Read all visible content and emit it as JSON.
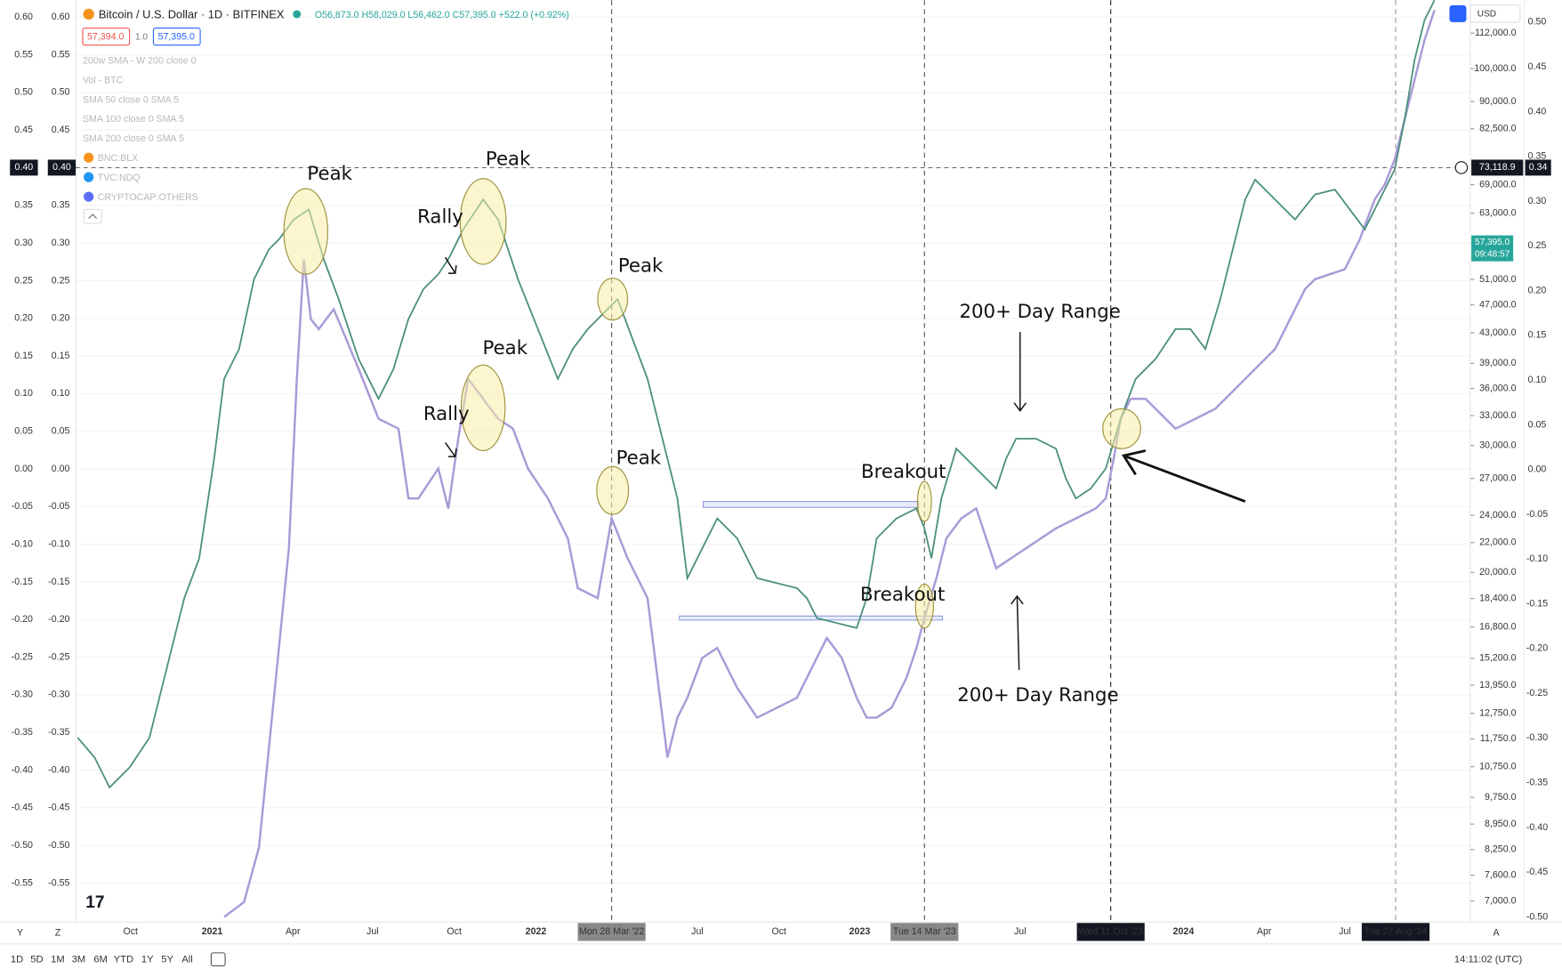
{
  "header": {
    "symbol": "Bitcoin / U.S. Dollar · 1D · BITFINEX",
    "ohlc": "O56,873.0 H58,029.0 L56,462.0 C57,395.0 +522.0 (+0.92%)",
    "bid": "57,394.0",
    "spread": "1.0",
    "ask": "57,395.0",
    "currency": "USD"
  },
  "indicators": [
    "200w SMA - W 200 close 0",
    "Vol - BTC",
    "SMA 50 close 0 SMA 5",
    "SMA 100 close 0 SMA 5",
    "SMA 200 close 0 SMA 5",
    "BNC:BLX",
    "TVC:NDQ",
    "CRYPTOCAP:OTHERS"
  ],
  "left_axis": [
    {
      "value": 0.6,
      "label": "0.60"
    },
    {
      "value": 0.55,
      "label": "0.55"
    },
    {
      "value": 0.5,
      "label": "0.50"
    },
    {
      "value": 0.45,
      "label": "0.45"
    },
    {
      "value": 0.4,
      "label": "0.40"
    },
    {
      "value": 0.35,
      "label": "0.35"
    },
    {
      "value": 0.3,
      "label": "0.30"
    },
    {
      "value": 0.25,
      "label": "0.25"
    },
    {
      "value": 0.2,
      "label": "0.20"
    },
    {
      "value": 0.15,
      "label": "0.15"
    },
    {
      "value": 0.1,
      "label": "0.10"
    },
    {
      "value": 0.05,
      "label": "0.05"
    },
    {
      "value": 0,
      "label": "0.00"
    },
    {
      "value": -0.05,
      "label": "-0.05"
    },
    {
      "value": -0.1,
      "label": "-0.10"
    },
    {
      "value": -0.15,
      "label": "-0.15"
    },
    {
      "value": -0.2,
      "label": "-0.20"
    },
    {
      "value": -0.25,
      "label": "-0.25"
    },
    {
      "value": -0.3,
      "label": "-0.30"
    },
    {
      "value": -0.35,
      "label": "-0.35"
    },
    {
      "value": -0.4,
      "label": "-0.40"
    },
    {
      "value": -0.45,
      "label": "-0.45"
    },
    {
      "value": -0.5,
      "label": "-0.50"
    },
    {
      "value": -0.55,
      "label": "-0.55"
    }
  ],
  "price_axis": [
    {
      "value": 112000,
      "label": "112,000.0"
    },
    {
      "value": 100000,
      "label": "100,000.0"
    },
    {
      "value": 90000,
      "label": "90,000.0"
    },
    {
      "value": 82500,
      "label": "82,500.0"
    },
    {
      "value": 69000,
      "label": "69,000.0"
    },
    {
      "value": 63000,
      "label": "63,000.0"
    },
    {
      "value": 51000,
      "label": "51,000.0"
    },
    {
      "value": 47000,
      "label": "47,000.0"
    },
    {
      "value": 43000,
      "label": "43,000.0"
    },
    {
      "value": 39000,
      "label": "39,000.0"
    },
    {
      "value": 36000,
      "label": "36,000.0"
    },
    {
      "value": 33000,
      "label": "33,000.0"
    },
    {
      "value": 30000,
      "label": "30,000.0"
    },
    {
      "value": 27000,
      "label": "27,000.0"
    },
    {
      "value": 24000,
      "label": "24,000.0"
    },
    {
      "value": 22000,
      "label": "22,000.0"
    },
    {
      "value": 20000,
      "label": "20,000.0"
    },
    {
      "value": 18400,
      "label": "18,400.0"
    },
    {
      "value": 16800,
      "label": "16,800.0"
    },
    {
      "value": 15200,
      "label": "15,200.0"
    },
    {
      "value": 13950,
      "label": "13,950.0"
    },
    {
      "value": 12750,
      "label": "12,750.0"
    },
    {
      "value": 11750,
      "label": "11,750.0"
    },
    {
      "value": 10750,
      "label": "10,750.0"
    },
    {
      "value": 9750,
      "label": "9,750.0"
    },
    {
      "value": 8950,
      "label": "8,950.0"
    },
    {
      "value": 8250,
      "label": "8,250.0"
    },
    {
      "value": 7600,
      "label": "7,600.0"
    },
    {
      "value": 7000,
      "label": "7,000.0"
    }
  ],
  "right_axis": [
    {
      "value": 0.5,
      "label": "0.50"
    },
    {
      "value": 0.45,
      "label": "0.45"
    },
    {
      "value": 0.4,
      "label": "0.40"
    },
    {
      "value": 0.35,
      "label": "0.35"
    },
    {
      "value": 0.3,
      "label": "0.30"
    },
    {
      "value": 0.25,
      "label": "0.25"
    },
    {
      "value": 0.2,
      "label": "0.20"
    },
    {
      "value": 0.15,
      "label": "0.15"
    },
    {
      "value": 0.1,
      "label": "0.10"
    },
    {
      "value": 0.05,
      "label": "0.05"
    },
    {
      "value": 0,
      "label": "0.00"
    },
    {
      "value": -0.05,
      "label": "-0.05"
    },
    {
      "value": -0.1,
      "label": "-0.10"
    },
    {
      "value": -0.15,
      "label": "-0.15"
    },
    {
      "value": -0.2,
      "label": "-0.20"
    },
    {
      "value": -0.25,
      "label": "-0.25"
    },
    {
      "value": -0.3,
      "label": "-0.30"
    },
    {
      "value": -0.35,
      "label": "-0.35"
    },
    {
      "value": -0.4,
      "label": "-0.40"
    },
    {
      "value": -0.45,
      "label": "-0.45"
    },
    {
      "value": -0.5,
      "label": "-0.50"
    }
  ],
  "crosshair": {
    "left_value": "0.40",
    "price": "73,118.9",
    "right_value": "0.34"
  },
  "last_price": {
    "price": "57,395.0",
    "countdown": "09:48:57"
  },
  "time_axis": [
    "Oct",
    "2021",
    "Apr",
    "Jul",
    "Oct",
    "2022",
    "Mon 28 Mar '22",
    "Jul",
    "Oct",
    "2023",
    "Tue 14 Mar '23",
    "Jul",
    "Wed 11 Oct '23",
    "2024",
    "Apr",
    "Jul",
    "Tue 27 Aug '24"
  ],
  "annotations": [
    "Peak",
    "Peak",
    "Rally",
    "Peak",
    "Peak",
    "Rally",
    "Peak",
    "Breakout",
    "Breakout",
    "200+ Day Range",
    "200+ Day Range"
  ],
  "axis_buttons": [
    "Y",
    "Z",
    "A"
  ],
  "ranges": [
    "1D",
    "5D",
    "1M",
    "3M",
    "6M",
    "YTD",
    "1Y",
    "5Y",
    "All"
  ],
  "clock": "14:11:02 (UTC)"
}
